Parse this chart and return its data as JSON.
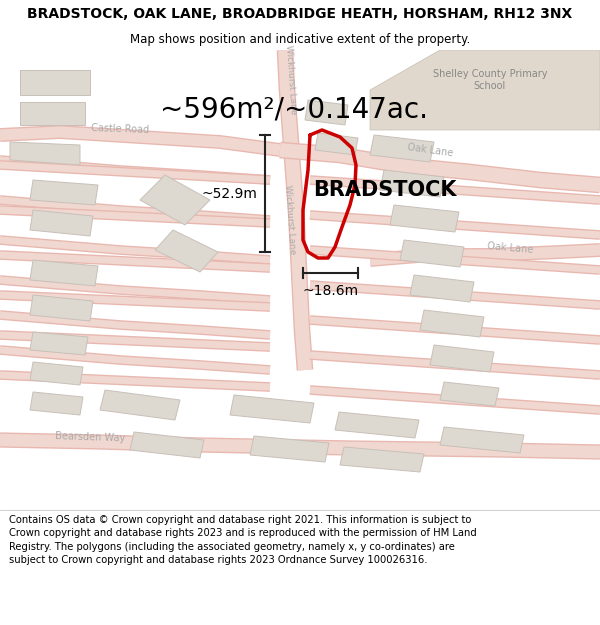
{
  "title": "BRADSTOCK, OAK LANE, BROADBRIDGE HEATH, HORSHAM, RH12 3NX",
  "subtitle": "Map shows position and indicative extent of the property.",
  "area_text": "~596m²/~0.147ac.",
  "width_text": "~18.6m",
  "height_text": "~52.9m",
  "property_label": "BRADSTOCK",
  "footer": "Contains OS data © Crown copyright and database right 2021. This information is subject to Crown copyright and database rights 2023 and is reproduced with the permission of HM Land Registry. The polygons (including the associated geometry, namely x, y co-ordinates) are subject to Crown copyright and database rights 2023 Ordnance Survey 100026316.",
  "map_bg": "#f7f4f0",
  "road_fill": "#f0d8d0",
  "road_edge": "#e8b8b0",
  "road_center": "#ffffff",
  "building_fill": "#ddd8d0",
  "building_edge": "#c8c0b8",
  "plot_color": "#cc0000",
  "dim_color": "#222222",
  "school_fill": "#e8e0d8",
  "text_gray": "#aaaaaa",
  "title_fontsize": 10,
  "subtitle_fontsize": 8.5,
  "label_fontsize": 15,
  "area_fontsize": 20,
  "dim_fontsize": 10,
  "footer_fontsize": 7.2
}
